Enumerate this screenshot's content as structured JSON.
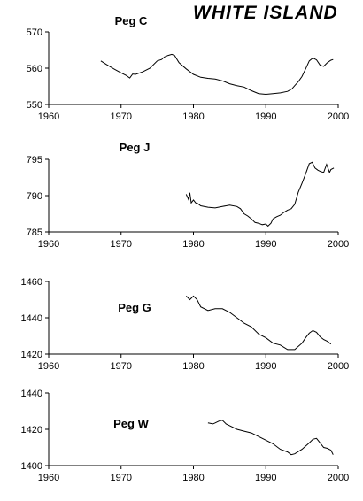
{
  "figure": {
    "title": "WHITE ISLAND"
  },
  "chart_data": [
    {
      "type": "line",
      "title": "Peg C",
      "xlim": [
        1960,
        2000
      ],
      "ylim": [
        550,
        570
      ],
      "xticks": [
        1960,
        1970,
        1980,
        1990,
        2000
      ],
      "yticks": [
        550,
        560,
        570
      ],
      "series": [
        {
          "x": [
            1967.2,
            1968.0,
            1969.0,
            1970.0,
            1970.7,
            1971.2,
            1971.6,
            1972.0,
            1973.0,
            1974.0,
            1975.0,
            1975.6,
            1976.0,
            1976.5,
            1977.0,
            1977.4,
            1978.0,
            1979.0,
            1980.0,
            1981.0,
            1982.0,
            1983.0,
            1984.0,
            1985.0,
            1986.0,
            1987.0,
            1988.0,
            1989.0,
            1990.0,
            1991.0,
            1992.0,
            1993.0,
            1993.6,
            1994.0,
            1994.5,
            1995.0,
            1995.5,
            1996.0,
            1996.5,
            1997.0,
            1997.5,
            1998.0,
            1998.5,
            1999.0,
            1999.3
          ],
          "y": [
            562.0,
            561.0,
            559.8,
            558.7,
            558.0,
            557.3,
            558.4,
            558.3,
            559.0,
            560.0,
            562.0,
            562.4,
            563.1,
            563.5,
            563.8,
            563.5,
            561.5,
            559.8,
            558.3,
            557.5,
            557.2,
            557.0,
            556.5,
            555.7,
            555.2,
            554.8,
            553.8,
            553.0,
            552.8,
            553.0,
            553.2,
            553.6,
            554.3,
            555.2,
            556.3,
            557.7,
            559.8,
            562.0,
            562.8,
            562.3,
            560.8,
            560.5,
            561.5,
            562.2,
            562.4
          ]
        }
      ]
    },
    {
      "type": "line",
      "title": "Peg J",
      "xlim": [
        1960,
        2000
      ],
      "ylim": [
        785,
        795
      ],
      "xticks": [
        1960,
        1970,
        1980,
        1990,
        2000
      ],
      "yticks": [
        785,
        790,
        795
      ],
      "series": [
        {
          "x": [
            1979.0,
            1979.3,
            1979.5,
            1979.7,
            1980.0,
            1980.3,
            1980.6,
            1981.0,
            1982.0,
            1983.0,
            1984.0,
            1985.0,
            1986.0,
            1986.5,
            1987.0,
            1987.5,
            1988.0,
            1988.5,
            1989.0,
            1989.5,
            1990.0,
            1990.3,
            1990.7,
            1991.0,
            1991.5,
            1992.0,
            1992.5,
            1993.0,
            1993.5,
            1994.0,
            1994.5,
            1995.0,
            1995.5,
            1996.0,
            1996.4,
            1996.8,
            1997.2,
            1997.6,
            1998.0,
            1998.4,
            1998.8,
            1999.0,
            1999.4
          ],
          "y": [
            790.2,
            789.5,
            790.4,
            789.0,
            789.4,
            789.0,
            788.9,
            788.6,
            788.4,
            788.3,
            788.5,
            788.7,
            788.5,
            788.2,
            787.5,
            787.2,
            786.8,
            786.3,
            786.2,
            786.0,
            786.1,
            785.8,
            786.2,
            786.8,
            787.1,
            787.3,
            787.7,
            788.0,
            788.2,
            788.8,
            790.5,
            791.7,
            793.0,
            794.4,
            794.6,
            793.8,
            793.5,
            793.3,
            793.2,
            794.3,
            793.2,
            793.6,
            793.8
          ]
        }
      ]
    },
    {
      "type": "line",
      "title": "Peg G",
      "xlim": [
        1960,
        2000
      ],
      "ylim": [
        1420,
        1460
      ],
      "xticks": [
        1960,
        1970,
        1980,
        1990,
        2000
      ],
      "yticks": [
        1420,
        1440,
        1460
      ],
      "series": [
        {
          "x": [
            1979.0,
            1979.5,
            1980.0,
            1980.5,
            1981.0,
            1982.0,
            1983.0,
            1984.0,
            1985.0,
            1986.0,
            1987.0,
            1988.0,
            1989.0,
            1990.0,
            1991.0,
            1992.0,
            1993.0,
            1994.0,
            1995.0,
            1995.5,
            1996.0,
            1996.5,
            1997.0,
            1997.5,
            1998.0,
            1998.5,
            1999.0
          ],
          "y": [
            1452.0,
            1450.0,
            1452.0,
            1450.0,
            1446.0,
            1444.0,
            1445.0,
            1445.0,
            1443.0,
            1440.0,
            1437.0,
            1435.0,
            1431.0,
            1429.0,
            1426.0,
            1425.0,
            1422.5,
            1422.5,
            1426.0,
            1429.0,
            1431.5,
            1433.0,
            1432.0,
            1429.5,
            1428.0,
            1427.0,
            1425.5
          ]
        }
      ]
    },
    {
      "type": "line",
      "title": "Peg W",
      "xlim": [
        1960,
        2000
      ],
      "ylim": [
        1400,
        1440
      ],
      "xticks": [
        1960,
        1970,
        1980,
        1990,
        2000
      ],
      "yticks": [
        1400,
        1420,
        1440
      ],
      "series": [
        {
          "x": [
            1982.0,
            1982.7,
            1983.0,
            1983.5,
            1984.0,
            1984.5,
            1985.0,
            1986.0,
            1987.0,
            1988.0,
            1989.0,
            1990.0,
            1991.0,
            1992.0,
            1993.0,
            1993.5,
            1994.0,
            1995.0,
            1996.0,
            1996.5,
            1997.0,
            1997.5,
            1998.0,
            1998.5,
            1999.0,
            1999.3
          ],
          "y": [
            1423.5,
            1423.0,
            1423.5,
            1424.5,
            1425.0,
            1423.0,
            1422.0,
            1420.0,
            1419.0,
            1418.0,
            1416.0,
            1414.0,
            1412.0,
            1409.0,
            1407.5,
            1406.0,
            1406.5,
            1409.0,
            1412.5,
            1414.5,
            1415.0,
            1412.5,
            1410.0,
            1409.5,
            1408.5,
            1406.0
          ]
        }
      ]
    }
  ]
}
